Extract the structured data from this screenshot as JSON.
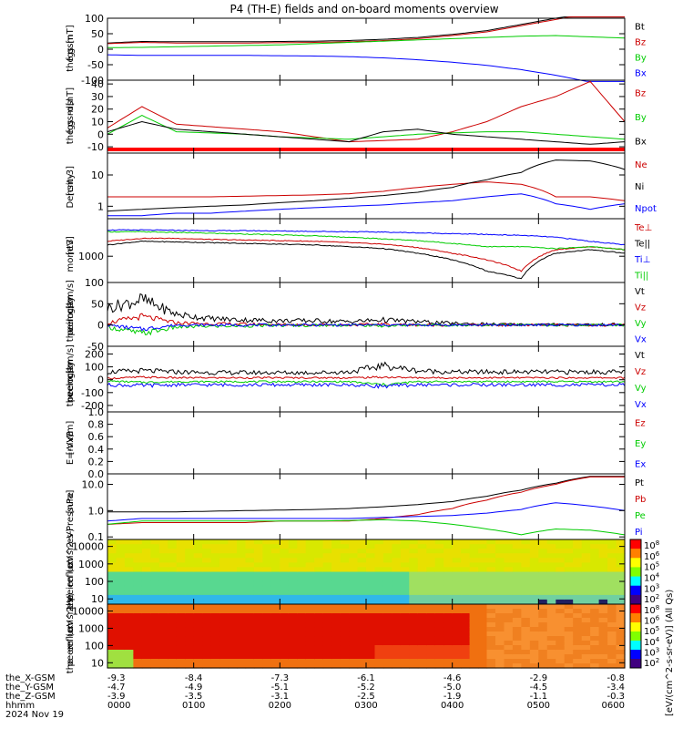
{
  "title": "P4 (TH-E) fields and on-board moments overview",
  "colors": {
    "black": "#000000",
    "red": "#cc0000",
    "green": "#00cc00",
    "blue": "#0000ff"
  },
  "chart_data": [
    {
      "type": "line",
      "panel": "fgs_gsm",
      "ylabel": [
        "the",
        "fgs",
        "gsm",
        "[nT]"
      ],
      "yticks": [
        "100",
        "50",
        "0",
        "-50",
        "-100"
      ],
      "ylim": [
        -100,
        100
      ],
      "series": [
        {
          "name": "Bt",
          "color": "black",
          "values": [
            20,
            25,
            24,
            24,
            24,
            25,
            26,
            28,
            32,
            38,
            48,
            60,
            80,
            100,
            120,
            120
          ]
        },
        {
          "name": "Bz",
          "color": "red",
          "values": [
            18,
            22,
            20,
            20,
            20,
            21,
            22,
            24,
            28,
            34,
            44,
            56,
            76,
            96,
            116,
            116
          ]
        },
        {
          "name": "By",
          "color": "green",
          "values": [
            5,
            6,
            8,
            10,
            12,
            14,
            18,
            22,
            26,
            30,
            34,
            38,
            42,
            44,
            40,
            36
          ]
        },
        {
          "name": "Bx",
          "color": "blue",
          "values": [
            -18,
            -20,
            -20,
            -20,
            -20,
            -21,
            -22,
            -24,
            -28,
            -34,
            -42,
            -52,
            -66,
            -84,
            -106,
            -120
          ]
        }
      ],
      "x": [
        0,
        0.4,
        0.8,
        1.2,
        1.6,
        2.0,
        2.4,
        2.8,
        3.2,
        3.6,
        4.0,
        4.4,
        4.8,
        5.2,
        5.6,
        6.0
      ]
    },
    {
      "type": "line",
      "panel": "fgs_gsm_dsl",
      "ylabel": [
        "the",
        "fgs",
        "gsm",
        "-dsl",
        "[nT]"
      ],
      "yticks": [
        "40",
        "30",
        "20",
        "10",
        "0",
        "-10"
      ],
      "ylim": [
        -15,
        43
      ],
      "series": [
        {
          "name": "Bz",
          "color": "red",
          "values": [
            5,
            22,
            8,
            6,
            4,
            2,
            -2,
            -6,
            -5,
            -4,
            2,
            10,
            22,
            30,
            42,
            10
          ]
        },
        {
          "name": "By",
          "color": "green",
          "values": [
            0,
            15,
            2,
            1,
            0,
            -2,
            -3,
            -4,
            -2,
            0,
            1,
            2,
            2,
            0,
            -2,
            -4
          ]
        },
        {
          "name": "Bx",
          "color": "black",
          "values": [
            2,
            10,
            4,
            2,
            0,
            -2,
            -4,
            -6,
            2,
            4,
            0,
            -2,
            -4,
            -6,
            -8,
            -6
          ]
        }
      ],
      "x": [
        0,
        0.4,
        0.8,
        1.2,
        1.6,
        2.0,
        2.4,
        2.8,
        3.2,
        3.6,
        4.0,
        4.4,
        4.8,
        5.2,
        5.6,
        6.0
      ]
    },
    {
      "type": "line",
      "panel": "density",
      "yscale": "log",
      "ylabel": [
        "Density",
        "[cm-3]"
      ],
      "yticks": [
        "10",
        "1"
      ],
      "ylim": [
        0.4,
        50
      ],
      "series": [
        {
          "name": "Ne",
          "color": "red",
          "values": [
            2,
            2,
            2,
            2,
            2.1,
            2.2,
            2.3,
            2.5,
            3,
            4,
            5,
            6,
            5,
            2,
            2,
            1.5
          ]
        },
        {
          "name": "Ni",
          "color": "black",
          "values": [
            0.7,
            0.8,
            0.9,
            1,
            1.1,
            1.3,
            1.5,
            1.8,
            2.2,
            2.8,
            4,
            7,
            12,
            30,
            28,
            15
          ]
        },
        {
          "name": "Npot",
          "color": "blue",
          "values": [
            0.5,
            0.5,
            0.6,
            0.6,
            0.7,
            0.8,
            0.9,
            1,
            1.1,
            1.3,
            1.5,
            2,
            2.5,
            1.2,
            0.8,
            1.2
          ]
        }
      ],
      "x": [
        0,
        0.4,
        0.8,
        1.2,
        1.6,
        2.0,
        2.4,
        2.8,
        3.2,
        3.6,
        4.0,
        4.4,
        4.8,
        5.2,
        5.6,
        6.0
      ]
    },
    {
      "type": "line",
      "panel": "temperature",
      "yscale": "log",
      "ylabel": [
        "momt3",
        "[eV]"
      ],
      "yticks": [
        "1000"
      ],
      "ylim": [
        200,
        10000
      ],
      "series": [
        {
          "name": "Te⊥",
          "color": "red",
          "values": [
            2500,
            3000,
            3000,
            2800,
            2700,
            2600,
            2500,
            2300,
            2100,
            1700,
            1200,
            800,
            400,
            1500,
            1800,
            1500
          ]
        },
        {
          "name": "Te||",
          "color": "black",
          "values": [
            2000,
            2500,
            2400,
            2300,
            2200,
            2100,
            2000,
            1800,
            1600,
            1200,
            800,
            400,
            250,
            1200,
            1500,
            1200
          ]
        },
        {
          "name": "Ti⊥",
          "color": "blue",
          "values": [
            5000,
            5000,
            4900,
            4800,
            4800,
            4700,
            4600,
            4500,
            4400,
            4200,
            4000,
            3800,
            3600,
            3200,
            2500,
            2000
          ]
        },
        {
          "name": "Ti||",
          "color": "green",
          "values": [
            4500,
            4500,
            4300,
            4100,
            3900,
            3700,
            3500,
            3200,
            2900,
            2600,
            2200,
            1800,
            1800,
            1600,
            1800,
            1500
          ]
        }
      ],
      "x": [
        0,
        0.4,
        0.8,
        1.2,
        1.6,
        2.0,
        2.4,
        2.8,
        3.2,
        3.6,
        4.0,
        4.4,
        4.8,
        5.2,
        5.6,
        6.0
      ]
    },
    {
      "type": "line",
      "panel": "peim_velocity",
      "ylabel": [
        "the",
        "peim",
        "velocity",
        "gsm",
        "[km/s]"
      ],
      "yticks": [
        "100",
        "50",
        "0",
        "-50"
      ],
      "ylim": [
        -50,
        100
      ],
      "series": [
        {
          "name": "Vt",
          "color": "black",
          "values": [
            40,
            60,
            25,
            15,
            12,
            10,
            10,
            8,
            12,
            8,
            4,
            2,
            1,
            1,
            1,
            1
          ]
        },
        {
          "name": "Vz",
          "color": "red",
          "values": [
            5,
            20,
            5,
            3,
            2,
            1,
            1,
            0,
            2,
            0,
            0,
            0,
            0,
            0,
            0,
            0
          ]
        },
        {
          "name": "Vy",
          "color": "green",
          "values": [
            -5,
            -20,
            -5,
            -3,
            -2,
            -1,
            -1,
            0,
            -2,
            0,
            0,
            0,
            0,
            0,
            0,
            0
          ]
        },
        {
          "name": "Vx",
          "color": "blue",
          "values": [
            0,
            -10,
            0,
            0,
            0,
            0,
            0,
            0,
            0,
            0,
            0,
            0,
            0,
            0,
            0,
            0
          ]
        }
      ],
      "x": [
        0,
        0.4,
        0.8,
        1.2,
        1.6,
        2.0,
        2.4,
        2.8,
        3.2,
        3.6,
        4.0,
        4.4,
        4.8,
        5.2,
        5.6,
        6.0
      ]
    },
    {
      "type": "line",
      "panel": "peem_velocity",
      "ylabel": [
        "the",
        "peem",
        "velocity",
        "gsm",
        "[km/s]"
      ],
      "yticks": [
        "200",
        "100",
        "0",
        "-100",
        "-200"
      ],
      "ylim": [
        -250,
        260
      ],
      "series": [
        {
          "name": "Vt",
          "color": "black",
          "values": [
            60,
            70,
            60,
            55,
            55,
            55,
            55,
            60,
            110,
            70,
            60,
            60,
            60,
            60,
            60,
            60
          ]
        },
        {
          "name": "Vz",
          "color": "red",
          "values": [
            10,
            20,
            15,
            15,
            15,
            15,
            15,
            15,
            20,
            15,
            15,
            15,
            15,
            15,
            15,
            15
          ]
        },
        {
          "name": "Vy",
          "color": "green",
          "values": [
            -10,
            -20,
            -15,
            -15,
            -15,
            -15,
            -15,
            -15,
            -40,
            -15,
            -15,
            -15,
            -15,
            -15,
            -15,
            -15
          ]
        },
        {
          "name": "Vx",
          "color": "blue",
          "values": [
            -40,
            -45,
            -40,
            -40,
            -40,
            -40,
            -40,
            -40,
            -50,
            -40,
            -40,
            -40,
            -40,
            -40,
            -40,
            -40
          ]
        }
      ],
      "x": [
        0,
        0.4,
        0.8,
        1.2,
        1.6,
        2.0,
        2.4,
        2.8,
        3.2,
        3.6,
        4.0,
        4.4,
        4.8,
        5.2,
        5.6,
        6.0
      ]
    },
    {
      "type": "line",
      "panel": "efield",
      "ylabel": [
        "E=-VxB",
        "[mV/m]"
      ],
      "yticks": [
        "1.0",
        "0.8",
        "0.6",
        "0.4",
        "0.2",
        "0.0"
      ],
      "ylim": [
        0,
        1
      ],
      "series": [
        {
          "name": "Ez",
          "color": "red",
          "values": []
        },
        {
          "name": "Ey",
          "color": "green",
          "values": []
        },
        {
          "name": "Ex",
          "color": "blue",
          "values": []
        }
      ]
    },
    {
      "type": "line",
      "panel": "pressure",
      "yscale": "log",
      "ylabel": [
        "Pressure",
        "[nPa]"
      ],
      "yticks": [
        "10.0",
        "1.0",
        "0.1"
      ],
      "ylim": [
        0.08,
        25
      ],
      "series": [
        {
          "name": "Pt",
          "color": "black",
          "values": [
            0.9,
            0.9,
            0.9,
            0.95,
            1,
            1.05,
            1.1,
            1.2,
            1.4,
            1.7,
            2.2,
            3.5,
            6,
            11,
            20,
            20
          ]
        },
        {
          "name": "Pb",
          "color": "red",
          "values": [
            0.3,
            0.35,
            0.35,
            0.35,
            0.35,
            0.4,
            0.4,
            0.4,
            0.5,
            0.7,
            1.2,
            2.5,
            5,
            10,
            19,
            19
          ]
        },
        {
          "name": "Pe",
          "color": "green",
          "values": [
            0.3,
            0.4,
            0.4,
            0.4,
            0.4,
            0.4,
            0.4,
            0.42,
            0.45,
            0.4,
            0.3,
            0.2,
            0.12,
            0.2,
            0.18,
            0.12
          ]
        },
        {
          "name": "Pi",
          "color": "blue",
          "values": [
            0.4,
            0.5,
            0.5,
            0.5,
            0.5,
            0.5,
            0.5,
            0.5,
            0.55,
            0.6,
            0.65,
            0.8,
            1.1,
            2,
            1.5,
            1
          ]
        }
      ],
      "x": [
        0,
        0.4,
        0.8,
        1.2,
        1.6,
        2.0,
        2.4,
        2.8,
        3.2,
        3.6,
        4.0,
        4.4,
        4.8,
        5.2,
        5.6,
        6.0
      ]
    },
    {
      "type": "heatmap",
      "panel": "peir_spectrogram",
      "yscale": "log",
      "ylabel": [
        "the",
        "peir",
        "en",
        "eflux",
        "eV",
        "(cm^2-s-",
        "sr-eV)"
      ],
      "yticks": [
        "10000",
        "1000",
        "100",
        "10"
      ],
      "ylim": [
        5,
        25000
      ]
    },
    {
      "type": "heatmap",
      "panel": "peer_spectrogram",
      "yscale": "log",
      "ylabel": [
        "the",
        "peer",
        "en",
        "eflux",
        "eV",
        "(cm^2-s-",
        "sr-eV)"
      ],
      "yticks": [
        "10000",
        "1000",
        "100",
        "10"
      ],
      "ylim": [
        5,
        25000
      ]
    }
  ],
  "colorbars": {
    "upper": {
      "ticks": [
        "10^8",
        "10^6",
        "10^5",
        "10^4",
        "10^3",
        "10^2"
      ]
    },
    "lower": {
      "ticks": [
        "10^8",
        "10^6",
        "10^5",
        "10^4",
        "10^3",
        "10^2"
      ]
    },
    "label": "[eV/(cm^2-s-sr-eV)] (All Qs)"
  },
  "ephemeris": {
    "rows": [
      {
        "label": "the_X-GSM",
        "values": [
          "-9.3",
          "-8.4",
          "-7.3",
          "-6.1",
          "-4.6",
          "-2.9",
          "-0.8"
        ]
      },
      {
        "label": "the_Y-GSM",
        "values": [
          "-4.7",
          "-4.9",
          "-5.1",
          "-5.2",
          "-5.0",
          "-4.5",
          "-3.4"
        ]
      },
      {
        "label": "the_Z-GSM",
        "values": [
          "-3.9",
          "-3.5",
          "-3.1",
          "-2.5",
          "-1.9",
          "-1.1",
          "-0.3"
        ]
      },
      {
        "label": "hhmm",
        "values": [
          "0000",
          "0100",
          "0200",
          "0300",
          "0400",
          "0500",
          "0600"
        ]
      }
    ],
    "date": "2024 Nov 19"
  }
}
